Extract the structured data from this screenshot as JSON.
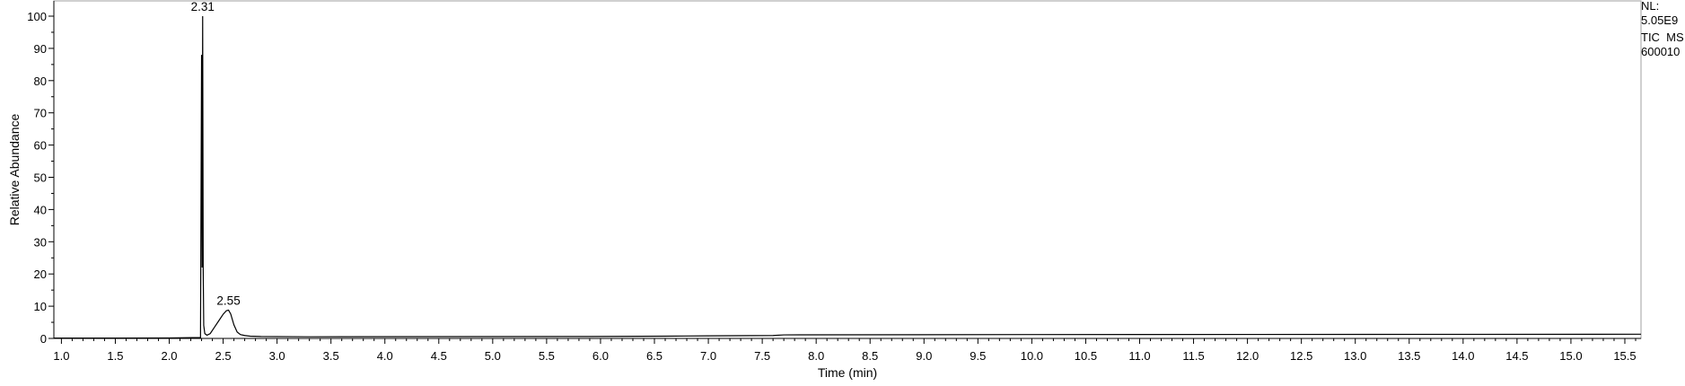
{
  "chart_data": {
    "type": "line",
    "title": "",
    "xlabel": "Time (min)",
    "ylabel": "Relative Abundance",
    "xlim": [
      0.93,
      15.65
    ],
    "ylim": [
      0,
      100
    ],
    "grid": false,
    "x_ticks": [
      "1.0",
      "1.5",
      "2.0",
      "2.5",
      "3.0",
      "3.5",
      "4.0",
      "4.5",
      "5.0",
      "5.5",
      "6.0",
      "6.5",
      "7.0",
      "7.5",
      "8.0",
      "8.5",
      "9.0",
      "9.5",
      "10.0",
      "10.5",
      "11.0",
      "11.5",
      "12.0",
      "12.5",
      "13.0",
      "13.5",
      "14.0",
      "14.5",
      "15.0",
      "15.5"
    ],
    "y_ticks": [
      "0",
      "10",
      "20",
      "30",
      "40",
      "50",
      "60",
      "70",
      "80",
      "90",
      "100"
    ],
    "peak_labels": [
      {
        "x": 2.31,
        "y": 100,
        "text": "2.31"
      },
      {
        "x": 2.55,
        "y": 8.8,
        "text": "2.55"
      }
    ],
    "series": [
      {
        "x": [
          0.93,
          2.0,
          2.29,
          2.3,
          2.305,
          2.31,
          2.315,
          2.32,
          2.33,
          2.35,
          2.38,
          2.42,
          2.46,
          2.5,
          2.53,
          2.55,
          2.57,
          2.6,
          2.63,
          2.66,
          2.7,
          2.75,
          2.85,
          3.3,
          5.9,
          6.6,
          7.0,
          7.6,
          7.7,
          10.0,
          15.65
        ],
        "y": [
          0.1,
          0.15,
          0.3,
          88,
          22,
          100,
          22,
          4,
          1.5,
          1.0,
          1.5,
          3.5,
          5.5,
          7.5,
          8.6,
          8.8,
          7.6,
          4.2,
          2.0,
          1.2,
          0.9,
          0.7,
          0.6,
          0.5,
          0.6,
          0.7,
          0.8,
          0.9,
          1.1,
          1.2,
          1.3
        ]
      }
    ]
  },
  "info": {
    "nl_label": "NL:",
    "nl_value": "5.05E9",
    "scan_type": "TIC  MS",
    "file_name": "600010"
  }
}
